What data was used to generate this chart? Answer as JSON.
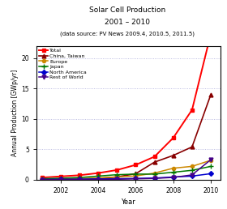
{
  "title": "Solar Cell Production\n2001 – 2010",
  "subtitle": "(data source: PV News 2009.4, 2010.5, 2011.5)",
  "xlabel": "Year",
  "ylabel": "Annual Production [GWp/yr]",
  "years": [
    2001,
    2002,
    2003,
    2004,
    2005,
    2006,
    2007,
    2008,
    2009,
    2010
  ],
  "series": {
    "Total": [
      0.36,
      0.55,
      0.74,
      1.1,
      1.6,
      2.45,
      3.8,
      6.9,
      11.5,
      24.0
    ],
    "China, Taiwan": [
      0.03,
      0.06,
      0.1,
      0.22,
      0.46,
      1.0,
      2.9,
      4.0,
      5.4,
      14.0
    ],
    "Europe": [
      0.1,
      0.14,
      0.19,
      0.3,
      0.46,
      0.62,
      1.1,
      1.9,
      2.2,
      3.2
    ],
    "Japan": [
      0.17,
      0.25,
      0.36,
      0.6,
      0.83,
      0.93,
      0.92,
      1.24,
      1.55,
      2.2
    ],
    "North America": [
      0.05,
      0.08,
      0.1,
      0.14,
      0.17,
      0.22,
      0.28,
      0.45,
      0.6,
      1.0
    ],
    "Rest of World": [
      0.01,
      0.02,
      0.03,
      0.05,
      0.08,
      0.15,
      0.22,
      0.38,
      0.8,
      3.3
    ]
  },
  "colors": {
    "Total": "#ff0000",
    "China, Taiwan": "#880000",
    "Europe": "#cc8800",
    "Japan": "#007700",
    "North America": "#0000cc",
    "Rest of World": "#440088"
  },
  "markers": {
    "Total": "s",
    "China, Taiwan": "^",
    "Europe": "o",
    "Japan": "+",
    "North America": "D",
    "Rest of World": "v"
  },
  "ylim": [
    0,
    22
  ],
  "yticks": [
    0,
    5,
    10,
    15,
    20
  ],
  "grid_color": "#8888cc",
  "bg_color": "#ffffff",
  "fig_width": 2.8,
  "fig_height": 2.58,
  "dpi": 100
}
